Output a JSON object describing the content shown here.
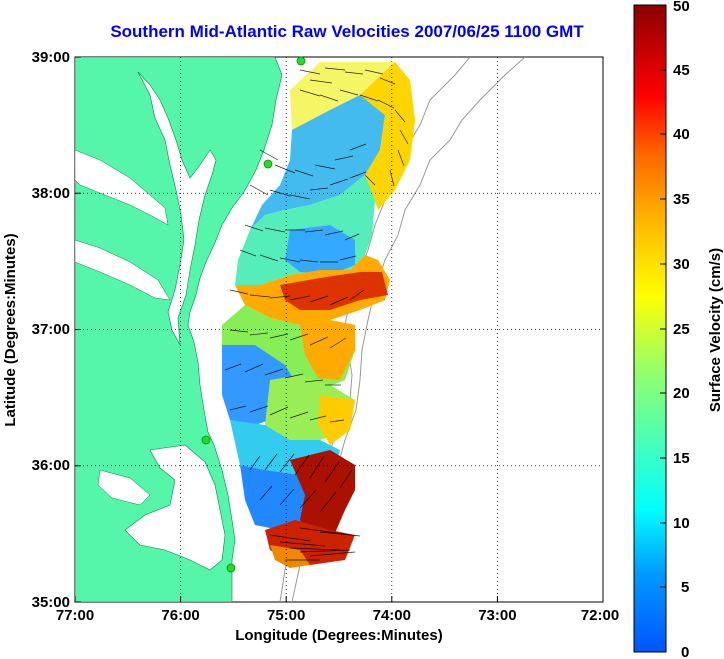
{
  "title": "Southern Mid-Atlantic Raw Velocities 2007/06/25 1100 GMT",
  "xlabel": "Longitude (Degrees:Minutes)",
  "ylabel": "Latitude (Degrees:Minutes)",
  "x_ticks": [
    "77:00",
    "76:00",
    "75:00",
    "74:00",
    "73:00",
    "72:00"
  ],
  "y_ticks": [
    "39:00",
    "38:00",
    "37:00",
    "36:00",
    "35:00"
  ],
  "colorbar": {
    "label": "Surface Velocity (cm/s)",
    "ticks": [
      "0",
      "5",
      "10",
      "15",
      "20",
      "25",
      "30",
      "35",
      "40",
      "45",
      "50"
    ],
    "colors": [
      "#0055ff",
      "#00aaff",
      "#00ffff",
      "#55ffaa",
      "#aaff55",
      "#ffff00",
      "#ffaa00",
      "#ff5500",
      "#ff0000",
      "#aa0000"
    ]
  },
  "map_style": {
    "land_color": "#55f5aa",
    "water_color": "#ffffff",
    "station_color": "#22dd22",
    "grid": true
  }
}
